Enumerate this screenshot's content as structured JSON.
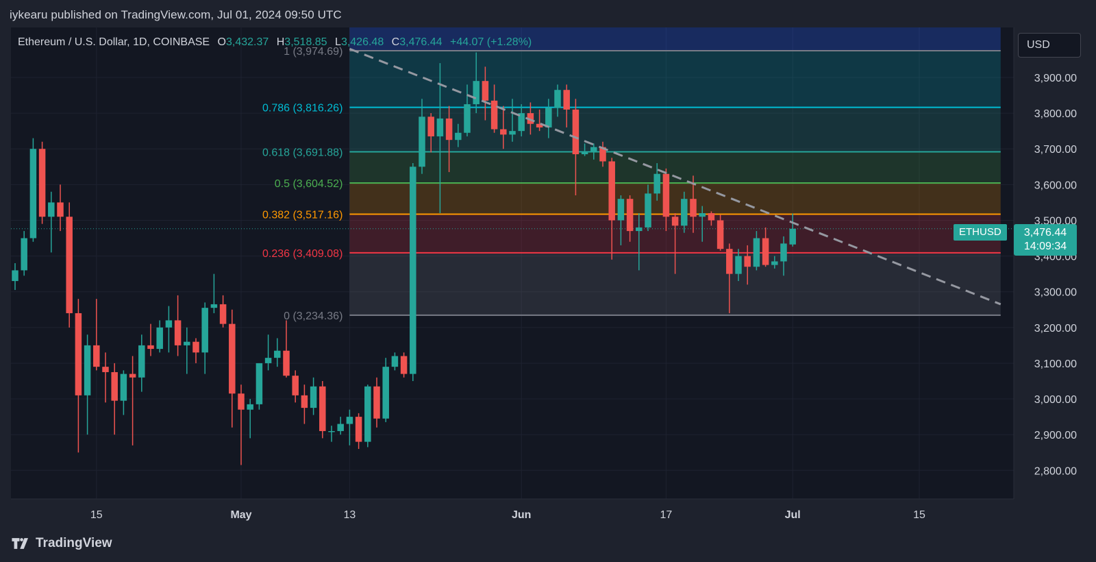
{
  "header": {
    "published_line": "iykearu published on TradingView.com, Jul 01, 2024 09:50 UTC"
  },
  "legend": {
    "symbol": "Ethereum / U.S. Dollar, 1D, COINBASE",
    "o_key": "O",
    "o_val": "3,432.37",
    "h_key": "H",
    "h_val": "3,518.85",
    "l_key": "L",
    "l_val": "3,426.48",
    "c_key": "C",
    "c_val": "3,476.44",
    "change": "+44.07 (+1.28%)"
  },
  "currency_button": "USD",
  "price_tag": {
    "symbol": "ETHUSD",
    "price": "3,476.44",
    "countdown": "14:09:34"
  },
  "footer": {
    "brand": "TradingView"
  },
  "colors": {
    "up": "#26a69a",
    "down": "#ef5350",
    "bg": "#1e222d",
    "plot_bg": "#131722"
  },
  "chart_data": {
    "type": "candlestick",
    "y_axis": {
      "min": 2720,
      "max": 4040,
      "ticks": [
        2800,
        2900,
        3000,
        3100,
        3200,
        3300,
        3400,
        3500,
        3600,
        3700,
        3800,
        3900
      ],
      "tick_labels": [
        "2,800.00",
        "2,900.00",
        "3,000.00",
        "3,100.00",
        "3,200.00",
        "3,300.00",
        "3,400.00",
        "3,500.00",
        "3,600.00",
        "3,700.00",
        "3,800.00",
        "3,900.00"
      ]
    },
    "x_axis": {
      "labels": [
        {
          "text": "15",
          "date": "2024-04-15"
        },
        {
          "text": "May",
          "date": "2024-05-01"
        },
        {
          "text": "13",
          "date": "2024-05-13"
        },
        {
          "text": "Jun",
          "date": "2024-06-01"
        },
        {
          "text": "17",
          "date": "2024-06-17"
        },
        {
          "text": "Jul",
          "date": "2024-07-01"
        },
        {
          "text": "15",
          "date": "2024-07-15"
        }
      ]
    },
    "last_price": 3476.44,
    "candles": [
      [
        "2024-04-06",
        3330,
        3380,
        3305,
        3360
      ],
      [
        "2024-04-07",
        3360,
        3470,
        3345,
        3450
      ],
      [
        "2024-04-08",
        3450,
        3730,
        3440,
        3700
      ],
      [
        "2024-04-09",
        3700,
        3720,
        3490,
        3510
      ],
      [
        "2024-04-10",
        3510,
        3580,
        3410,
        3550
      ],
      [
        "2024-04-11",
        3550,
        3600,
        3470,
        3510
      ],
      [
        "2024-04-12",
        3510,
        3550,
        3200,
        3240
      ],
      [
        "2024-04-13",
        3240,
        3280,
        2850,
        3010
      ],
      [
        "2024-04-14",
        3010,
        3180,
        2900,
        3150
      ],
      [
        "2024-04-15",
        3150,
        3280,
        3080,
        3090
      ],
      [
        "2024-04-16",
        3090,
        3130,
        2990,
        3075
      ],
      [
        "2024-04-17",
        3075,
        3100,
        2900,
        2995
      ],
      [
        "2024-04-18",
        2995,
        3080,
        2955,
        3070
      ],
      [
        "2024-04-19",
        3070,
        3120,
        2870,
        3060
      ],
      [
        "2024-04-20",
        3060,
        3180,
        3020,
        3150
      ],
      [
        "2024-04-21",
        3150,
        3210,
        3120,
        3140
      ],
      [
        "2024-04-22",
        3140,
        3220,
        3130,
        3200
      ],
      [
        "2024-04-23",
        3200,
        3260,
        3130,
        3220
      ],
      [
        "2024-04-24",
        3220,
        3290,
        3120,
        3150
      ],
      [
        "2024-04-25",
        3150,
        3200,
        3070,
        3160
      ],
      [
        "2024-04-26",
        3160,
        3170,
        3100,
        3130
      ],
      [
        "2024-04-27",
        3130,
        3270,
        3070,
        3255
      ],
      [
        "2024-04-28",
        3255,
        3350,
        3240,
        3265
      ],
      [
        "2024-04-29",
        3265,
        3290,
        3200,
        3210
      ],
      [
        "2024-04-30",
        3210,
        3250,
        2920,
        3015
      ],
      [
        "2024-05-01",
        3015,
        3040,
        2815,
        2970
      ],
      [
        "2024-05-02",
        2970,
        3000,
        2890,
        2985
      ],
      [
        "2024-05-03",
        2985,
        3100,
        2970,
        3100
      ],
      [
        "2024-05-04",
        3100,
        3180,
        3080,
        3115
      ],
      [
        "2024-05-05",
        3115,
        3170,
        3090,
        3135
      ],
      [
        "2024-05-06",
        3135,
        3220,
        3060,
        3065
      ],
      [
        "2024-05-07",
        3065,
        3080,
        2990,
        3010
      ],
      [
        "2024-05-08",
        3010,
        3040,
        2930,
        2975
      ],
      [
        "2024-05-09",
        2975,
        3060,
        2955,
        3035
      ],
      [
        "2024-05-10",
        3035,
        3050,
        2890,
        2910
      ],
      [
        "2024-05-11",
        2910,
        2925,
        2880,
        2910
      ],
      [
        "2024-05-12",
        2910,
        2950,
        2900,
        2930
      ],
      [
        "2024-05-13",
        2930,
        2970,
        2870,
        2950
      ],
      [
        "2024-05-14",
        2950,
        2960,
        2860,
        2880
      ],
      [
        "2024-05-15",
        2880,
        3040,
        2865,
        3035
      ],
      [
        "2024-05-16",
        3035,
        3060,
        2920,
        2945
      ],
      [
        "2024-05-17",
        2945,
        3115,
        2935,
        3090
      ],
      [
        "2024-05-18",
        3090,
        3130,
        3080,
        3120
      ],
      [
        "2024-05-19",
        3120,
        3130,
        3060,
        3070
      ],
      [
        "2024-05-20",
        3070,
        3660,
        3050,
        3650
      ],
      [
        "2024-05-21",
        3650,
        3840,
        3630,
        3790
      ],
      [
        "2024-05-22",
        3790,
        3800,
        3690,
        3735
      ],
      [
        "2024-05-23",
        3735,
        3940,
        3520,
        3785
      ],
      [
        "2024-05-24",
        3785,
        3820,
        3635,
        3725
      ],
      [
        "2024-05-25",
        3725,
        3770,
        3705,
        3745
      ],
      [
        "2024-05-26",
        3745,
        3880,
        3735,
        3825
      ],
      [
        "2024-05-27",
        3825,
        3970,
        3800,
        3890
      ],
      [
        "2024-05-28",
        3890,
        3930,
        3780,
        3835
      ],
      [
        "2024-05-29",
        3835,
        3880,
        3745,
        3755
      ],
      [
        "2024-05-30",
        3755,
        3820,
        3700,
        3740
      ],
      [
        "2024-05-31",
        3740,
        3840,
        3720,
        3750
      ],
      [
        "2024-06-01",
        3750,
        3825,
        3735,
        3800
      ],
      [
        "2024-06-02",
        3800,
        3830,
        3740,
        3770
      ],
      [
        "2024-06-03",
        3770,
        3810,
        3750,
        3760
      ],
      [
        "2024-06-04",
        3760,
        3840,
        3730,
        3815
      ],
      [
        "2024-06-05",
        3815,
        3880,
        3790,
        3865
      ],
      [
        "2024-06-06",
        3865,
        3880,
        3760,
        3810
      ],
      [
        "2024-06-07",
        3810,
        3840,
        3570,
        3685
      ],
      [
        "2024-06-08",
        3685,
        3715,
        3680,
        3690
      ],
      [
        "2024-06-09",
        3690,
        3715,
        3670,
        3705
      ],
      [
        "2024-06-10",
        3705,
        3720,
        3650,
        3665
      ],
      [
        "2024-06-11",
        3665,
        3675,
        3390,
        3500
      ],
      [
        "2024-06-12",
        3500,
        3570,
        3430,
        3560
      ],
      [
        "2024-06-13",
        3560,
        3570,
        3440,
        3470
      ],
      [
        "2024-06-14",
        3470,
        3520,
        3360,
        3480
      ],
      [
        "2024-06-15",
        3480,
        3600,
        3470,
        3575
      ],
      [
        "2024-06-16",
        3575,
        3660,
        3555,
        3630
      ],
      [
        "2024-06-17",
        3630,
        3645,
        3470,
        3510
      ],
      [
        "2024-06-18",
        3510,
        3520,
        3350,
        3485
      ],
      [
        "2024-06-19",
        3485,
        3580,
        3465,
        3560
      ],
      [
        "2024-06-20",
        3560,
        3625,
        3465,
        3510
      ],
      [
        "2024-06-21",
        3510,
        3540,
        3440,
        3520
      ],
      [
        "2024-06-22",
        3520,
        3525,
        3485,
        3500
      ],
      [
        "2024-06-23",
        3500,
        3515,
        3415,
        3420
      ],
      [
        "2024-06-24",
        3420,
        3435,
        3240,
        3350
      ],
      [
        "2024-06-25",
        3350,
        3420,
        3330,
        3400
      ],
      [
        "2024-06-26",
        3400,
        3430,
        3320,
        3370
      ],
      [
        "2024-06-27",
        3370,
        3470,
        3360,
        3450
      ],
      [
        "2024-06-28",
        3450,
        3480,
        3370,
        3375
      ],
      [
        "2024-06-29",
        3375,
        3400,
        3365,
        3385
      ],
      [
        "2024-06-30",
        3385,
        3455,
        3345,
        3435
      ],
      [
        "2024-07-01",
        3432.37,
        3518.85,
        3426.48,
        3476.44
      ]
    ],
    "fibonacci": {
      "start_date": "2024-05-13",
      "end_date": "2024-07-24",
      "levels": [
        {
          "ratio": "1",
          "price": 3974.69,
          "label": "1 (3,974.69)",
          "color": "#787b86"
        },
        {
          "ratio": "0.786",
          "price": 3816.26,
          "label": "0.786 (3,816.26)",
          "color": "#00bcd4"
        },
        {
          "ratio": "0.618",
          "price": 3691.88,
          "label": "0.618 (3,691.88)",
          "color": "#26a69a"
        },
        {
          "ratio": "0.5",
          "price": 3604.52,
          "label": "0.5 (3,604.52)",
          "color": "#4caf50"
        },
        {
          "ratio": "0.382",
          "price": 3517.16,
          "label": "0.382 (3,517.16)",
          "color": "#ff9800"
        },
        {
          "ratio": "0.236",
          "price": 3409.08,
          "label": "0.236 (3,409.08)",
          "color": "#f23645"
        },
        {
          "ratio": "0",
          "price": 3234.36,
          "label": "0 (3,234.36)",
          "color": "#787b86"
        }
      ],
      "top_band_color": "#2962ff"
    },
    "trendline": {
      "start": {
        "date": "2024-05-13",
        "price": 3980
      },
      "end": {
        "date": "2024-07-24",
        "price": 3265
      }
    },
    "grid": true
  }
}
